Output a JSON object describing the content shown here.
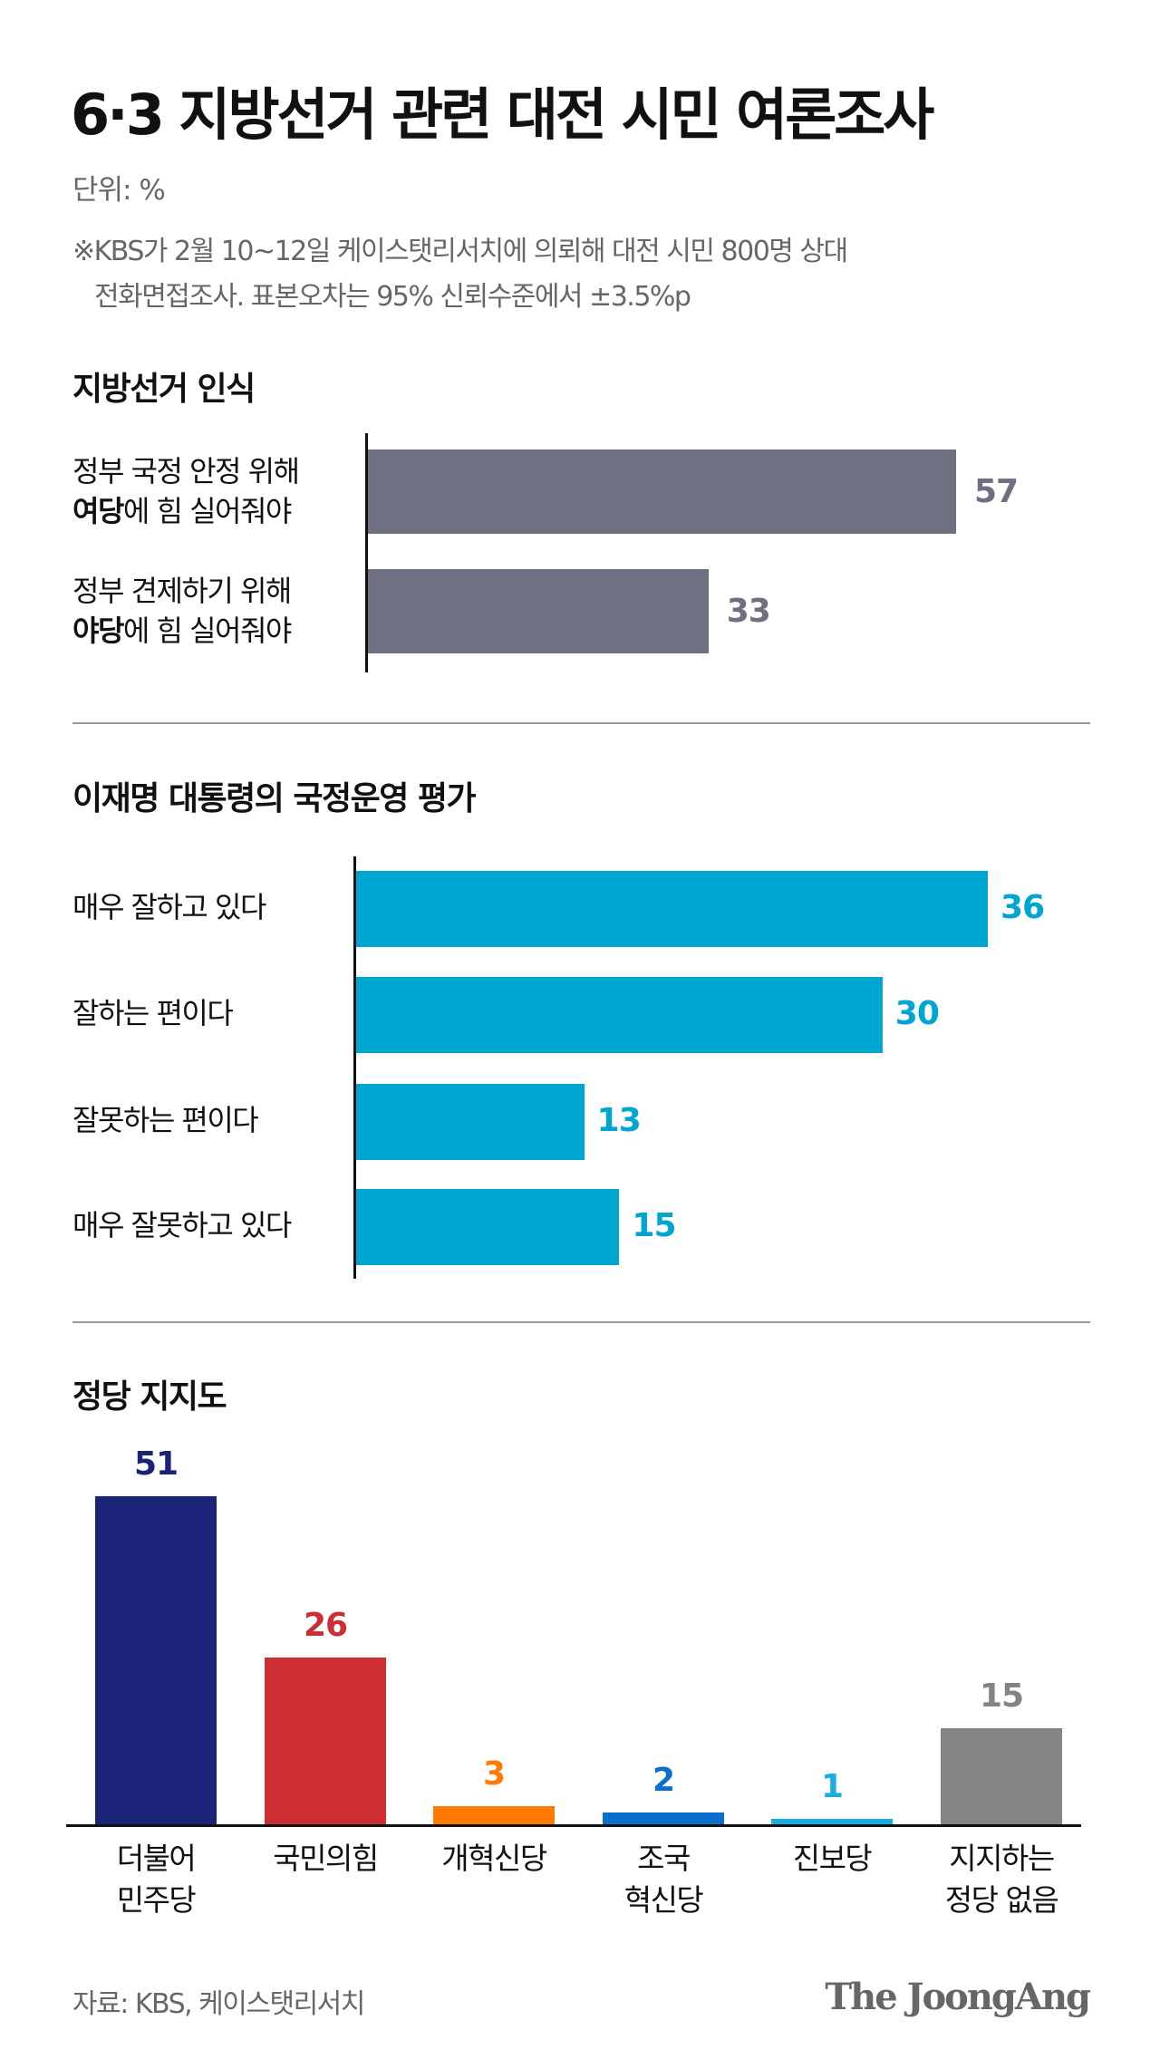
{
  "title": "6·3 지방선거 관련 대전 시민 여론조사",
  "unit": "단위: %",
  "note_line1": "※KBS가 2월 10~12일 케이스탯리서치에 의뢰해 대전 시민 800명 상대",
  "note_line2": "전화면접조사. 표본오차는 95% 신뢰수준에서 ±3.5%p",
  "footer": "자료: KBS, 케이스탯리서치",
  "logo": "The JoongAng",
  "chart_data": [
    {
      "type": "bar",
      "orientation": "horizontal",
      "title": "지방선거 인식",
      "color": "#6e6f80",
      "categories": [
        {
          "line1": "정부 국정 안정 위해",
          "bold": "여당",
          "rest": "에 힘 실어줘야"
        },
        {
          "line1": "정부 견제하기 위해",
          "bold": "야당",
          "rest": "에 힘 실어줘야"
        }
      ],
      "values": [
        57,
        33
      ]
    },
    {
      "type": "bar",
      "orientation": "horizontal",
      "title": "이재명 대통령의 국정운영 평가",
      "color": "#00a6d2",
      "categories": [
        "매우 잘하고 있다",
        "잘하는 편이다",
        "잘못하는 편이다",
        "매우 잘못하고 있다"
      ],
      "values": [
        36,
        30,
        13,
        15
      ]
    },
    {
      "type": "bar",
      "orientation": "vertical",
      "title": "정당 지지도",
      "categories": [
        [
          "더불어",
          "민주당"
        ],
        [
          "국민의힘"
        ],
        [
          "개혁신당"
        ],
        [
          "조국",
          "혁신당"
        ],
        [
          "진보당"
        ],
        [
          "지지하는",
          "정당 없음"
        ]
      ],
      "values": [
        51,
        26,
        3,
        2,
        1,
        15
      ],
      "colors": [
        "#1b2378",
        "#cc2e34",
        "#ff7a00",
        "#0a6fcc",
        "#18aee0",
        "#848484"
      ]
    }
  ]
}
